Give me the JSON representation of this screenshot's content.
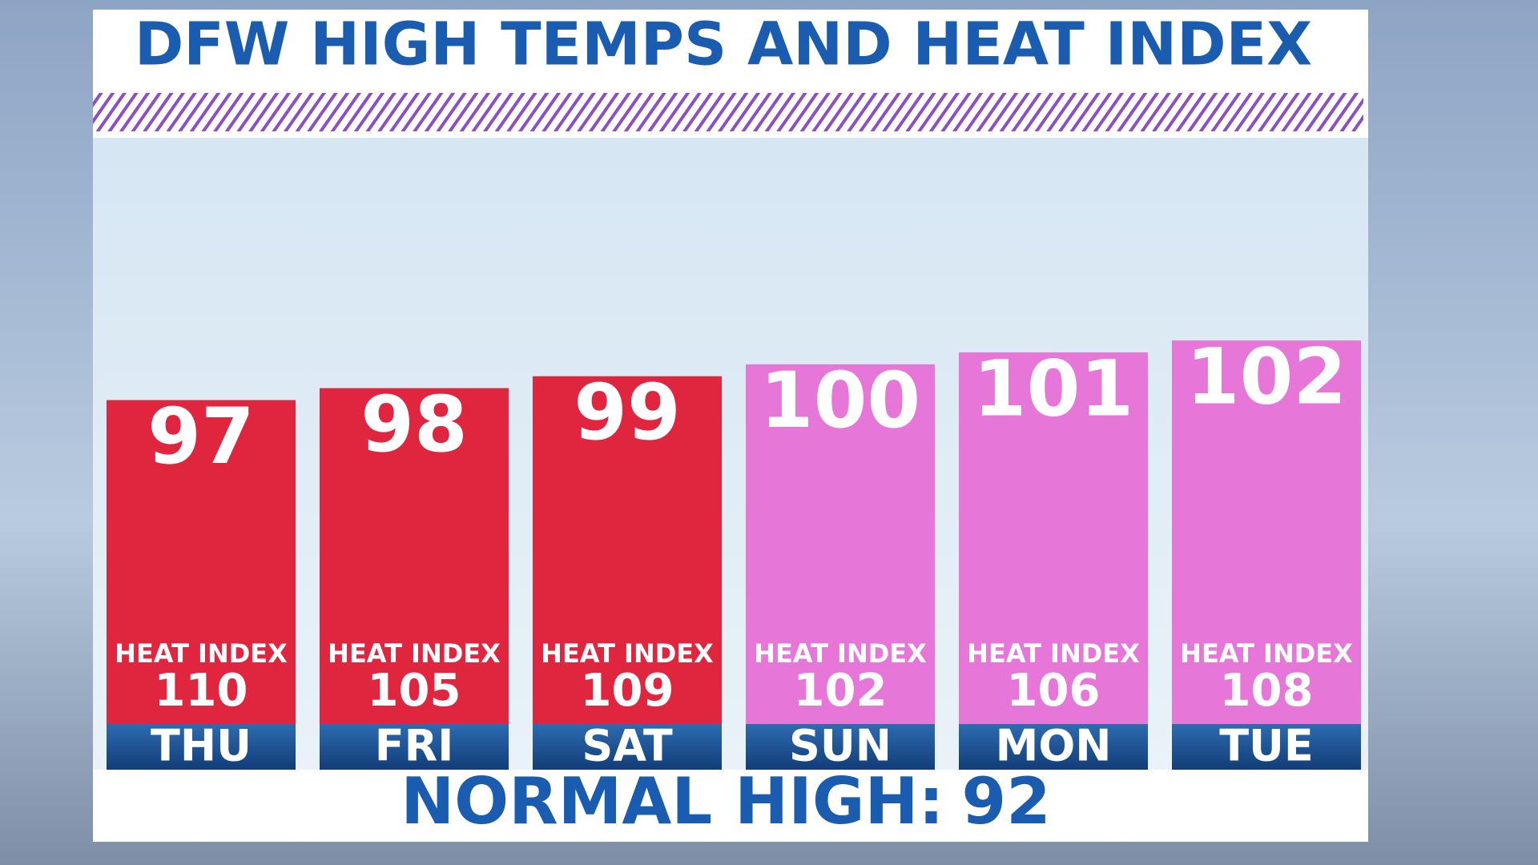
{
  "chart_data": {
    "type": "bar",
    "title": "DFW HIGH TEMPS AND HEAT INDEX",
    "categories": [
      "THU",
      "FRI",
      "SAT",
      "SUN",
      "MON",
      "TUE"
    ],
    "values": [
      97,
      98,
      99,
      100,
      101,
      102
    ],
    "colors": [
      "#e0263f",
      "#e0263f",
      "#e0263f",
      "#e676d8",
      "#e676d8",
      "#e676d8"
    ],
    "heat_index_label": "HEAT INDEX",
    "heat_index": [
      110,
      105,
      109,
      102,
      106,
      108
    ],
    "ylim": [
      66,
      119
    ],
    "normal_high": {
      "label": "NORMAL HIGH:",
      "value": 92
    }
  }
}
